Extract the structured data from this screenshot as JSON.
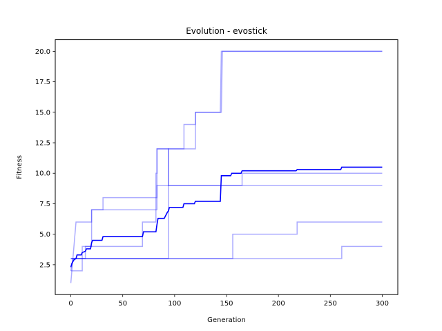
{
  "chart_data": {
    "type": "line",
    "title": "Evolution - evostick",
    "xlabel": "Generation",
    "ylabel": "Fitness",
    "xlim": [
      -15,
      315
    ],
    "ylim": [
      0.05,
      20.95
    ],
    "xticks": [
      0,
      50,
      100,
      150,
      200,
      250,
      300
    ],
    "yticks": [
      2.5,
      5.0,
      7.5,
      10.0,
      12.5,
      15.0,
      17.5,
      20.0
    ],
    "xtick_labels": [
      "0",
      "50",
      "100",
      "150",
      "200",
      "250",
      "300"
    ],
    "ytick_labels": [
      "2.5",
      "5.0",
      "7.5",
      "10.0",
      "12.5",
      "15.0",
      "17.5",
      "20.0"
    ],
    "grid": false,
    "series": [
      {
        "role": "run",
        "color": "#0000ff",
        "opacity": 0.33,
        "points": [
          [
            0,
            2
          ],
          [
            11,
            2
          ],
          [
            11,
            4
          ],
          [
            20,
            4
          ],
          [
            20,
            7
          ],
          [
            83,
            7
          ],
          [
            83,
            12
          ],
          [
            120,
            12
          ],
          [
            120,
            15
          ],
          [
            145,
            15
          ],
          [
            146,
            20
          ],
          [
            300,
            20
          ]
        ]
      },
      {
        "role": "run",
        "color": "#0000ff",
        "opacity": 0.33,
        "points": [
          [
            0,
            3
          ],
          [
            94,
            3
          ],
          [
            94,
            12
          ],
          [
            109,
            12
          ],
          [
            109,
            14
          ],
          [
            120,
            14
          ],
          [
            120,
            15
          ],
          [
            144,
            15
          ],
          [
            145,
            20
          ],
          [
            300,
            20
          ]
        ]
      },
      {
        "role": "run",
        "color": "#0000ff",
        "opacity": 0.33,
        "points": [
          [
            0,
            1
          ],
          [
            5,
            6
          ],
          [
            20,
            6
          ],
          [
            20,
            7
          ],
          [
            31,
            7
          ],
          [
            31,
            8
          ],
          [
            83,
            8
          ],
          [
            83,
            9
          ],
          [
            165,
            9
          ],
          [
            165,
            10
          ],
          [
            300,
            10
          ]
        ]
      },
      {
        "role": "run",
        "color": "#0000ff",
        "opacity": 0.33,
        "points": [
          [
            0,
            2
          ],
          [
            2,
            3
          ],
          [
            14,
            3
          ],
          [
            14,
            4
          ],
          [
            69,
            4
          ],
          [
            69,
            6
          ],
          [
            82,
            6
          ],
          [
            82,
            10
          ],
          [
            83,
            10
          ],
          [
            83,
            12
          ],
          [
            94,
            12
          ],
          [
            94,
            9
          ],
          [
            300,
            9
          ]
        ]
      },
      {
        "role": "run",
        "color": "#0000ff",
        "opacity": 0.33,
        "points": [
          [
            0,
            3
          ],
          [
            156,
            3
          ],
          [
            156,
            5
          ],
          [
            218,
            5
          ],
          [
            218,
            6
          ],
          [
            300,
            6
          ]
        ]
      },
      {
        "role": "run",
        "color": "#0000ff",
        "opacity": 0.33,
        "points": [
          [
            0,
            3
          ],
          [
            261,
            3
          ],
          [
            261,
            4
          ],
          [
            300,
            4
          ]
        ]
      },
      {
        "role": "mean",
        "color": "#0000ff",
        "opacity": 1.0,
        "points": [
          [
            0,
            2.3
          ],
          [
            1,
            2.6
          ],
          [
            3,
            2.9
          ],
          [
            5,
            3.0
          ],
          [
            6,
            3.3
          ],
          [
            10,
            3.3
          ],
          [
            11,
            3.5
          ],
          [
            14,
            3.6
          ],
          [
            15,
            3.8
          ],
          [
            19,
            3.8
          ],
          [
            20,
            4.3
          ],
          [
            21,
            4.5
          ],
          [
            30,
            4.5
          ],
          [
            31,
            4.8
          ],
          [
            69,
            4.8
          ],
          [
            70,
            5.2
          ],
          [
            82,
            5.2
          ],
          [
            83,
            5.8
          ],
          [
            84,
            6.3
          ],
          [
            90,
            6.3
          ],
          [
            93,
            6.8
          ],
          [
            94,
            6.9
          ],
          [
            95,
            7.2
          ],
          [
            108,
            7.2
          ],
          [
            109,
            7.5
          ],
          [
            119,
            7.5
          ],
          [
            120,
            7.7
          ],
          [
            144,
            7.7
          ],
          [
            145,
            9.8
          ],
          [
            154,
            9.8
          ],
          [
            155,
            10.0
          ],
          [
            164,
            10.0
          ],
          [
            165,
            10.2
          ],
          [
            217,
            10.2
          ],
          [
            218,
            10.3
          ],
          [
            260,
            10.3
          ],
          [
            261,
            10.5
          ],
          [
            300,
            10.5
          ]
        ]
      }
    ]
  }
}
